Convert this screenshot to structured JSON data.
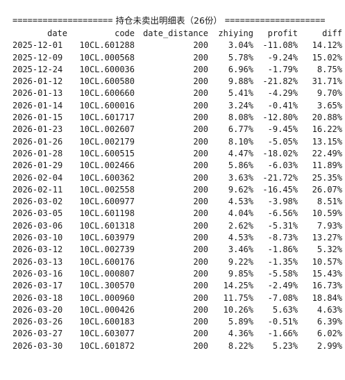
{
  "title": {
    "left_rule": "====================",
    "text": "持仓未卖出明细表（26份）",
    "right_rule": "===================="
  },
  "columns": [
    "date",
    "code",
    "date_distance",
    "zhiying",
    "profit",
    "diff"
  ],
  "rows": [
    [
      "2025-12-01",
      "10CL.601288",
      "200",
      "3.04%",
      "-11.08%",
      "14.12%"
    ],
    [
      "2025-12-09",
      "10CL.000568",
      "200",
      "5.78%",
      "-9.24%",
      "15.02%"
    ],
    [
      "2025-12-24",
      "10CL.600036",
      "200",
      "6.96%",
      "-1.79%",
      "8.75%"
    ],
    [
      "2026-01-12",
      "10CL.600580",
      "200",
      "9.88%",
      "-21.82%",
      "31.71%"
    ],
    [
      "2026-01-13",
      "10CL.600660",
      "200",
      "5.41%",
      "-4.29%",
      "9.70%"
    ],
    [
      "2026-01-14",
      "10CL.600016",
      "200",
      "3.24%",
      "-0.41%",
      "3.65%"
    ],
    [
      "2026-01-15",
      "10CL.601717",
      "200",
      "8.08%",
      "-12.80%",
      "20.88%"
    ],
    [
      "2026-01-23",
      "10CL.002607",
      "200",
      "6.77%",
      "-9.45%",
      "16.22%"
    ],
    [
      "2026-01-26",
      "10CL.002179",
      "200",
      "8.10%",
      "-5.05%",
      "13.15%"
    ],
    [
      "2026-01-28",
      "10CL.600515",
      "200",
      "4.47%",
      "-18.02%",
      "22.49%"
    ],
    [
      "2026-01-29",
      "10CL.002466",
      "200",
      "5.86%",
      "-6.03%",
      "11.89%"
    ],
    [
      "2026-02-04",
      "10CL.600362",
      "200",
      "3.63%",
      "-21.72%",
      "25.35%"
    ],
    [
      "2026-02-11",
      "10CL.002558",
      "200",
      "9.62%",
      "-16.45%",
      "26.07%"
    ],
    [
      "2026-03-02",
      "10CL.600977",
      "200",
      "4.53%",
      "-3.98%",
      "8.51%"
    ],
    [
      "2026-03-05",
      "10CL.601198",
      "200",
      "4.04%",
      "-6.56%",
      "10.59%"
    ],
    [
      "2026-03-06",
      "10CL.601318",
      "200",
      "2.62%",
      "-5.31%",
      "7.93%"
    ],
    [
      "2026-03-10",
      "10CL.603979",
      "200",
      "4.53%",
      "-8.73%",
      "13.27%"
    ],
    [
      "2026-03-12",
      "10CL.002739",
      "200",
      "3.46%",
      "-1.86%",
      "5.32%"
    ],
    [
      "2026-03-13",
      "10CL.600176",
      "200",
      "9.22%",
      "-1.35%",
      "10.57%"
    ],
    [
      "2026-03-16",
      "10CL.000807",
      "200",
      "9.85%",
      "-5.58%",
      "15.43%"
    ],
    [
      "2026-03-17",
      "10CL.300570",
      "200",
      "14.25%",
      "-2.49%",
      "16.73%"
    ],
    [
      "2026-03-18",
      "10CL.000960",
      "200",
      "11.75%",
      "-7.08%",
      "18.84%"
    ],
    [
      "2026-03-20",
      "10CL.000426",
      "200",
      "10.26%",
      "5.63%",
      "4.63%"
    ],
    [
      "2026-03-26",
      "10CL.600183",
      "200",
      "5.89%",
      "-0.51%",
      "6.39%"
    ],
    [
      "2026-03-27",
      "10CL.603077",
      "200",
      "4.36%",
      "-1.66%",
      "6.02%"
    ],
    [
      "2026-03-30",
      "10CL.601872",
      "200",
      "8.22%",
      "5.23%",
      "2.99%"
    ]
  ]
}
